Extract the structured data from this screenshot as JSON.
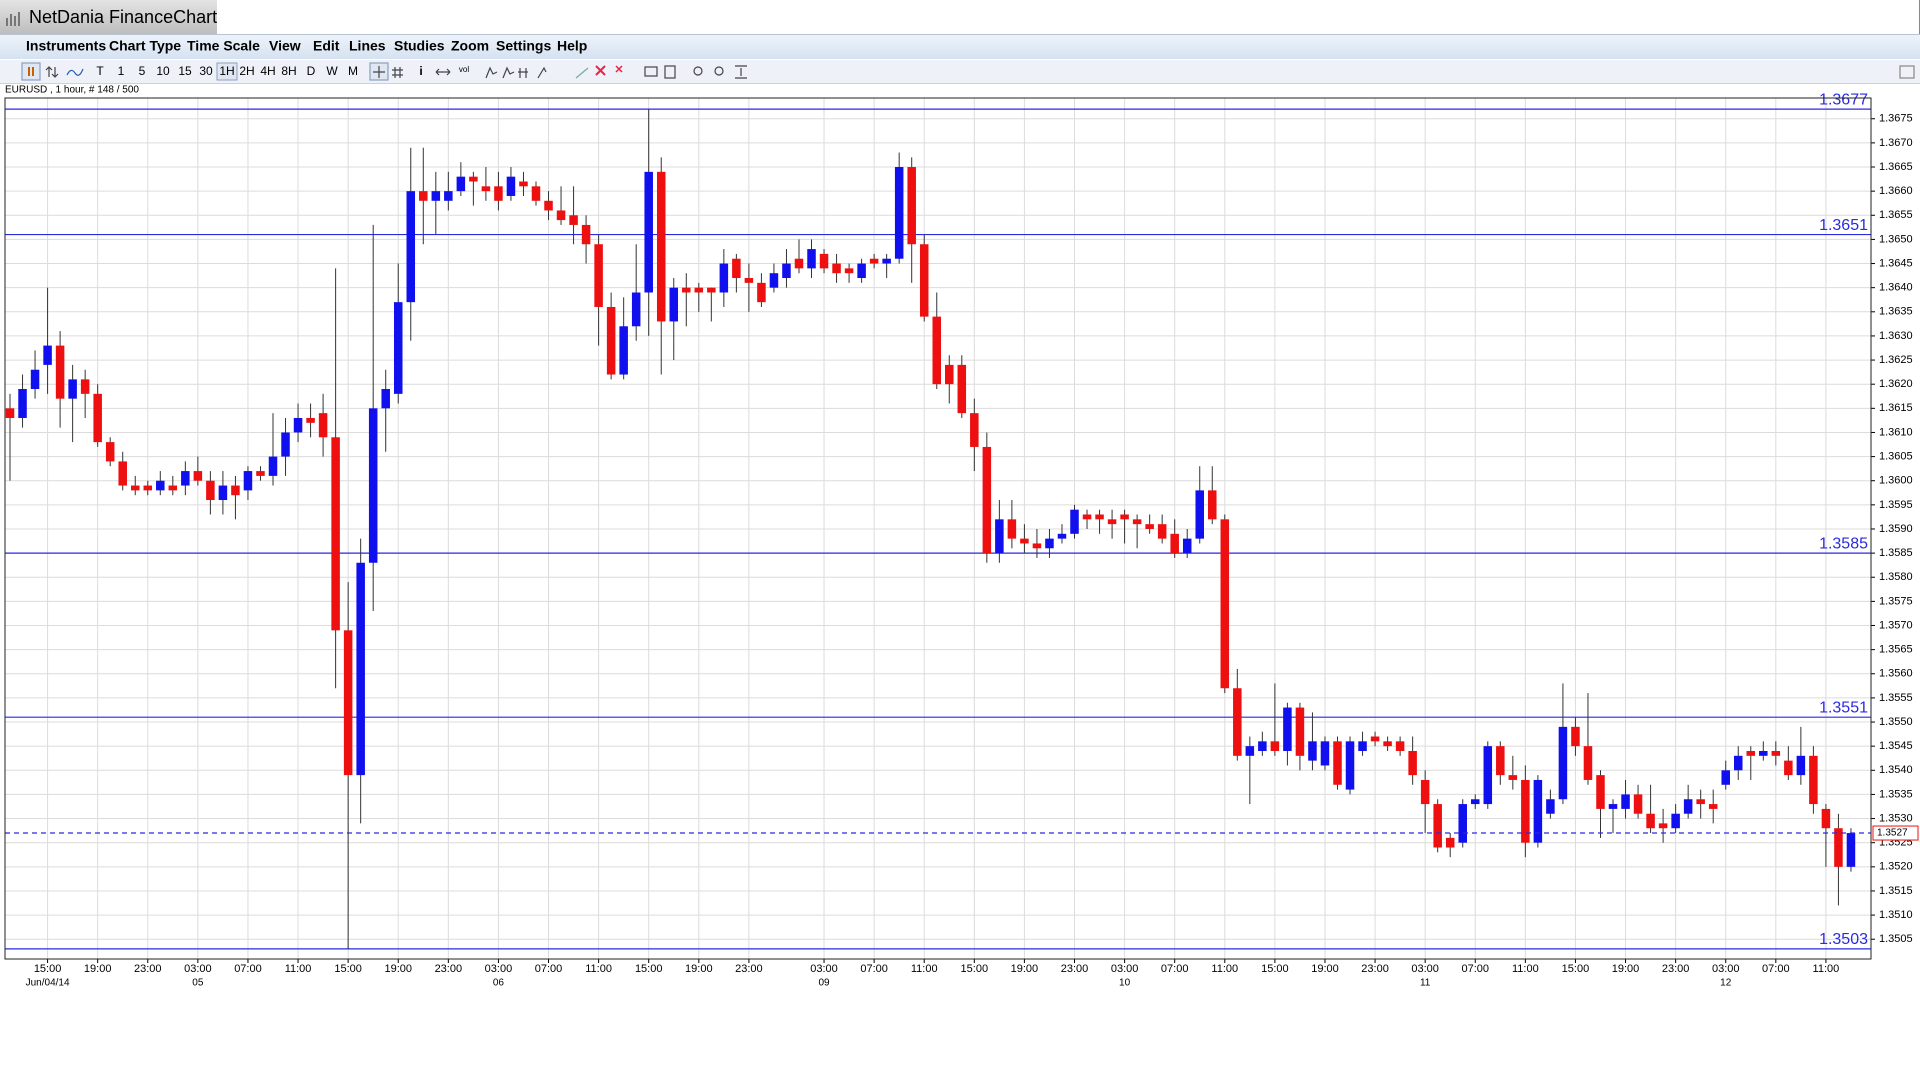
{
  "window": {
    "title": "NetDania FinanceChart"
  },
  "menu": [
    "Instruments",
    "Chart Type",
    "Time Scale",
    "View",
    "Edit",
    "Lines",
    "Studies",
    "Zoom",
    "Settings",
    "Help"
  ],
  "toolbar": {
    "timescales": [
      "T",
      "1",
      "5",
      "10",
      "15",
      "30",
      "1H",
      "2H",
      "4H",
      "8H",
      "D",
      "W",
      "M"
    ],
    "tools": [
      "i",
      "vol"
    ]
  },
  "chart_data": {
    "type": "candlestick",
    "subtitle": "EURUSD , 1 hour, # 148 / 500",
    "up_color": "#1010ee",
    "down_color": "#ee1010",
    "wick_color": "#333333",
    "grid": true,
    "grid_color": "#dcdcdc",
    "categories": [
      null,
      null,
      null,
      "15:00",
      null,
      null,
      null,
      "19:00",
      null,
      null,
      null,
      "23:00",
      null,
      null,
      null,
      "03:00",
      null,
      null,
      null,
      "07:00",
      null,
      null,
      null,
      "11:00",
      null,
      null,
      null,
      "15:00",
      null,
      null,
      null,
      "19:00",
      null,
      null,
      null,
      "23:00",
      null,
      null,
      null,
      "03:00",
      null,
      null,
      null,
      "07:00",
      null,
      null,
      null,
      "11:00",
      null,
      null,
      null,
      "15:00",
      null,
      null,
      null,
      "19:00",
      null,
      null,
      null,
      "23:00",
      null,
      null,
      null,
      null,
      null,
      "03:00",
      null,
      null,
      null,
      "07:00",
      null,
      null,
      null,
      "11:00",
      null,
      null,
      null,
      "15:00",
      null,
      null,
      null,
      "19:00",
      null,
      null,
      null,
      "23:00",
      null,
      null,
      null,
      "03:00",
      null,
      null,
      null,
      "07:00",
      null,
      null,
      null,
      "11:00",
      null,
      null,
      null,
      "15:00",
      null,
      null,
      null,
      "19:00",
      null,
      null,
      null,
      "23:00",
      null,
      null,
      null,
      "03:00",
      null,
      null,
      null,
      "07:00",
      null,
      null,
      null,
      "11:00",
      null,
      null,
      null,
      "15:00",
      null,
      null,
      null,
      "19:00",
      null,
      null,
      null,
      "23:00",
      null,
      null,
      null,
      "03:00",
      null,
      null,
      null,
      "07:00",
      null,
      null,
      null,
      "11:00",
      null,
      null
    ],
    "date_labels": [
      null,
      null,
      null,
      "Jun/04/14",
      null,
      null,
      null,
      null,
      null,
      null,
      null,
      null,
      null,
      null,
      null,
      "05",
      null,
      null,
      null,
      null,
      null,
      null,
      null,
      null,
      null,
      null,
      null,
      null,
      null,
      null,
      null,
      null,
      null,
      null,
      null,
      null,
      null,
      null,
      null,
      "06",
      null,
      null,
      null,
      null,
      null,
      null,
      null,
      null,
      null,
      null,
      null,
      null,
      null,
      null,
      null,
      null,
      null,
      null,
      null,
      null,
      null,
      null,
      null,
      null,
      null,
      "09",
      null,
      null,
      null,
      null,
      null,
      null,
      null,
      null,
      null,
      null,
      null,
      null,
      null,
      null,
      null,
      null,
      null,
      null,
      null,
      null,
      null,
      null,
      null,
      "10",
      null,
      null,
      null,
      null,
      null,
      null,
      null,
      null,
      null,
      null,
      null,
      null,
      null,
      null,
      null,
      null,
      null,
      null,
      null,
      null,
      null,
      null,
      null,
      "11",
      null,
      null,
      null,
      null,
      null,
      null,
      null,
      null,
      null,
      null,
      null,
      null,
      null,
      null,
      null,
      null,
      null,
      null,
      null,
      null,
      null,
      null,
      null,
      "12",
      null,
      null,
      null,
      null,
      null,
      null,
      null,
      null,
      null,
      null
    ],
    "open": [
      1.3615,
      1.3613,
      1.3619,
      1.3624,
      1.3628,
      1.3617,
      1.3621,
      1.3618,
      1.3608,
      1.3604,
      1.3599,
      1.3599,
      1.3598,
      1.3599,
      1.3599,
      1.3602,
      1.36,
      1.3596,
      1.3599,
      1.3598,
      1.3602,
      1.3601,
      1.3605,
      1.361,
      1.3613,
      1.3614,
      1.3609,
      1.3569,
      1.3539,
      1.3583,
      1.3615,
      1.3618,
      1.3637,
      1.366,
      1.3658,
      1.3658,
      1.366,
      1.3663,
      1.3661,
      1.3661,
      1.3659,
      1.3662,
      1.3661,
      1.3658,
      1.3656,
      1.3655,
      1.3653,
      1.3649,
      1.3636,
      1.3622,
      1.3632,
      1.3639,
      1.3664,
      1.3633,
      1.364,
      1.364,
      1.364,
      1.3639,
      1.3646,
      1.3642,
      1.3641,
      1.364,
      1.3642,
      1.3646,
      1.3644,
      1.3647,
      1.3645,
      1.3644,
      1.3642,
      1.3646,
      1.3645,
      1.3646,
      1.3665,
      1.3649,
      1.3634,
      1.3624,
      1.3624,
      1.3614,
      1.3607,
      1.3585,
      1.3592,
      1.3588,
      1.3587,
      1.3586,
      1.3588,
      1.3589,
      1.3593,
      1.3593,
      1.3592,
      1.3593,
      1.3592,
      1.3591,
      1.3591,
      1.3589,
      1.3585,
      1.3588,
      1.3598,
      1.3592,
      1.3557,
      1.3543,
      1.3544,
      1.3546,
      1.3544,
      1.3553,
      1.3542,
      1.3541,
      1.3546,
      1.3536,
      1.3544,
      1.3547,
      1.3546,
      1.3546,
      1.3544,
      1.3538,
      1.3533,
      1.3526,
      1.3525,
      1.3533,
      1.3533,
      1.3545,
      1.3539,
      1.3538,
      1.3525,
      1.3531,
      1.3534,
      1.3549,
      1.3545,
      1.3539,
      1.3532,
      1.3532,
      1.3535,
      1.3531,
      1.3529,
      1.3528,
      1.3531,
      1.3534,
      1.3533,
      1.3537,
      1.354,
      1.3544,
      1.3543,
      1.3544,
      1.3542,
      1.3539,
      1.3543,
      1.3532,
      1.3528,
      1.352
    ],
    "high": [
      1.3618,
      1.3622,
      1.3627,
      1.364,
      1.3631,
      1.3624,
      1.3623,
      1.362,
      1.3609,
      1.3606,
      1.3601,
      1.36,
      1.3602,
      1.3601,
      1.3604,
      1.3605,
      1.3602,
      1.3602,
      1.3601,
      1.3603,
      1.3603,
      1.3614,
      1.3613,
      1.3616,
      1.3616,
      1.3618,
      1.3644,
      1.3579,
      1.3588,
      1.3653,
      1.3623,
      1.3645,
      1.3669,
      1.3669,
      1.3664,
      1.3664,
      1.3666,
      1.3664,
      1.3665,
      1.3664,
      1.3665,
      1.3664,
      1.3662,
      1.366,
      1.3661,
      1.3661,
      1.3655,
      1.3651,
      1.3639,
      1.3638,
      1.3649,
      1.3677,
      1.3667,
      1.3642,
      1.3643,
      1.3641,
      1.364,
      1.3648,
      1.3647,
      1.3645,
      1.3643,
      1.3645,
      1.3648,
      1.365,
      1.365,
      1.3648,
      1.3647,
      1.3645,
      1.3646,
      1.3647,
      1.3647,
      1.3668,
      1.3667,
      1.3651,
      1.3639,
      1.3626,
      1.3626,
      1.3617,
      1.361,
      1.3596,
      1.3596,
      1.3591,
      1.359,
      1.359,
      1.3591,
      1.3595,
      1.3594,
      1.3594,
      1.3594,
      1.3594,
      1.3593,
      1.3593,
      1.3593,
      1.3592,
      1.359,
      1.3603,
      1.3603,
      1.3593,
      1.3561,
      1.3547,
      1.3548,
      1.3558,
      1.3554,
      1.3554,
      1.3552,
      1.3547,
      1.3547,
      1.3547,
      1.3548,
      1.3548,
      1.3547,
      1.3547,
      1.3547,
      1.354,
      1.3534,
      1.3527,
      1.3534,
      1.3535,
      1.3546,
      1.3546,
      1.3543,
      1.3541,
      1.3539,
      1.3536,
      1.3558,
      1.3551,
      1.3556,
      1.354,
      1.3534,
      1.3538,
      1.3537,
      1.3537,
      1.3532,
      1.3533,
      1.3537,
      1.3536,
      1.3536,
      1.3542,
      1.3545,
      1.3545,
      1.3546,
      1.3546,
      1.3545,
      1.3549,
      1.3545,
      1.3533,
      1.3531,
      1.3528
    ],
    "low": [
      1.36,
      1.3611,
      1.3617,
      1.3618,
      1.3611,
      1.3608,
      1.3613,
      1.3607,
      1.3603,
      1.3598,
      1.3597,
      1.3597,
      1.3597,
      1.3597,
      1.3597,
      1.3599,
      1.3593,
      1.3593,
      1.3592,
      1.3596,
      1.36,
      1.3599,
      1.3601,
      1.3608,
      1.3609,
      1.3605,
      1.3557,
      1.3503,
      1.3529,
      1.3573,
      1.3606,
      1.3616,
      1.3629,
      1.3649,
      1.3651,
      1.3656,
      1.3659,
      1.3657,
      1.3658,
      1.3656,
      1.3658,
      1.3659,
      1.3657,
      1.3654,
      1.3653,
      1.3649,
      1.3645,
      1.3628,
      1.3621,
      1.3621,
      1.3629,
      1.363,
      1.3622,
      1.3625,
      1.3632,
      1.3635,
      1.3633,
      1.3636,
      1.3639,
      1.3635,
      1.3636,
      1.3639,
      1.364,
      1.3643,
      1.3642,
      1.3643,
      1.3641,
      1.3641,
      1.3641,
      1.3644,
      1.3642,
      1.3645,
      1.3641,
      1.3633,
      1.3619,
      1.3616,
      1.3613,
      1.3602,
      1.3583,
      1.3583,
      1.3586,
      1.3585,
      1.3584,
      1.3584,
      1.3587,
      1.3588,
      1.359,
      1.3589,
      1.3588,
      1.3587,
      1.3586,
      1.3589,
      1.3587,
      1.3584,
      1.3584,
      1.3587,
      1.3591,
      1.3556,
      1.3542,
      1.3533,
      1.3543,
      1.3543,
      1.3541,
      1.354,
      1.354,
      1.354,
      1.3536,
      1.3535,
      1.3543,
      1.3545,
      1.3544,
      1.3543,
      1.3537,
      1.3527,
      1.3523,
      1.3522,
      1.3524,
      1.3532,
      1.3532,
      1.3537,
      1.3536,
      1.3522,
      1.3524,
      1.353,
      1.3533,
      1.3543,
      1.3537,
      1.3526,
      1.3527,
      1.353,
      1.353,
      1.3527,
      1.3525,
      1.3527,
      1.353,
      1.353,
      1.3529,
      1.3536,
      1.3538,
      1.3538,
      1.3542,
      1.3541,
      1.3538,
      1.3537,
      1.3531,
      1.352,
      1.3512,
      1.3519
    ],
    "close": [
      1.3613,
      1.3619,
      1.3623,
      1.3628,
      1.3617,
      1.3621,
      1.3618,
      1.3608,
      1.3604,
      1.3599,
      1.3598,
      1.3598,
      1.36,
      1.3598,
      1.3602,
      1.36,
      1.3596,
      1.3599,
      1.3597,
      1.3602,
      1.3601,
      1.3605,
      1.361,
      1.3613,
      1.3612,
      1.3609,
      1.3569,
      1.3539,
      1.3583,
      1.3615,
      1.3619,
      1.3637,
      1.366,
      1.3658,
      1.366,
      1.366,
      1.3663,
      1.3662,
      1.366,
      1.3658,
      1.3663,
      1.3661,
      1.3658,
      1.3656,
      1.3654,
      1.3653,
      1.3649,
      1.3636,
      1.3622,
      1.3632,
      1.3639,
      1.3664,
      1.3633,
      1.364,
      1.3639,
      1.3639,
      1.3639,
      1.3645,
      1.3642,
      1.3641,
      1.3637,
      1.3643,
      1.3645,
      1.3644,
      1.3648,
      1.3644,
      1.3643,
      1.3643,
      1.3645,
      1.3645,
      1.3646,
      1.3665,
      1.3649,
      1.3634,
      1.362,
      1.362,
      1.3614,
      1.3607,
      1.3585,
      1.3592,
      1.3588,
      1.3587,
      1.3586,
      1.3588,
      1.3589,
      1.3594,
      1.3592,
      1.3592,
      1.3591,
      1.3592,
      1.3591,
      1.359,
      1.3588,
      1.3585,
      1.3588,
      1.3598,
      1.3592,
      1.3557,
      1.3543,
      1.3545,
      1.3546,
      1.3544,
      1.3553,
      1.3543,
      1.3546,
      1.3546,
      1.3537,
      1.3546,
      1.3546,
      1.3546,
      1.3545,
      1.3544,
      1.3539,
      1.3533,
      1.3524,
      1.3524,
      1.3533,
      1.3534,
      1.3545,
      1.3539,
      1.3538,
      1.3525,
      1.3538,
      1.3534,
      1.3549,
      1.3545,
      1.3538,
      1.3532,
      1.3533,
      1.3535,
      1.3531,
      1.3528,
      1.3528,
      1.3531,
      1.3534,
      1.3533,
      1.3532,
      1.354,
      1.3543,
      1.3543,
      1.3544,
      1.3543,
      1.3539,
      1.3543,
      1.3533,
      1.3528,
      1.352,
      1.3527
    ],
    "ylim": [
      1.35009,
      1.36793
    ],
    "yticks": [
      1.3505,
      {
        "value": 1.351,
        "label": "1.3510"
      },
      1.3515,
      {
        "value": 1.352,
        "label": "1.3520"
      },
      1.3525,
      {
        "value": 1.353,
        "label": "1.3530"
      },
      1.3535,
      {
        "value": 1.354,
        "label": "1.3540"
      },
      1.3545,
      {
        "value": 1.355,
        "label": "1.3550"
      },
      1.3555,
      {
        "value": 1.356,
        "label": "1.3560"
      },
      1.3565,
      {
        "value": 1.357,
        "label": "1.3570"
      },
      1.3575,
      {
        "value": 1.358,
        "label": "1.3580"
      },
      1.3585,
      {
        "value": 1.359,
        "label": "1.3590"
      },
      1.3595,
      {
        "value": 1.36,
        "label": "1.3600"
      },
      1.3605,
      {
        "value": 1.361,
        "label": "1.3610"
      },
      1.3615,
      {
        "value": 1.362,
        "label": "1.3620"
      },
      1.3625,
      {
        "value": 1.363,
        "label": "1.3630"
      },
      1.3635,
      {
        "value": 1.364,
        "label": "1.3640"
      },
      1.3645,
      {
        "value": 1.365,
        "label": "1.3650"
      },
      1.3655,
      {
        "value": 1.366,
        "label": "1.3660"
      },
      1.3665,
      {
        "value": 1.367,
        "label": "1.3670"
      },
      1.3675
    ],
    "hlines": [
      1.3677,
      1.3651,
      1.3585,
      1.3551,
      1.3503
    ],
    "hline_color": "#2a2ae0",
    "last_price": 1.3527
  }
}
